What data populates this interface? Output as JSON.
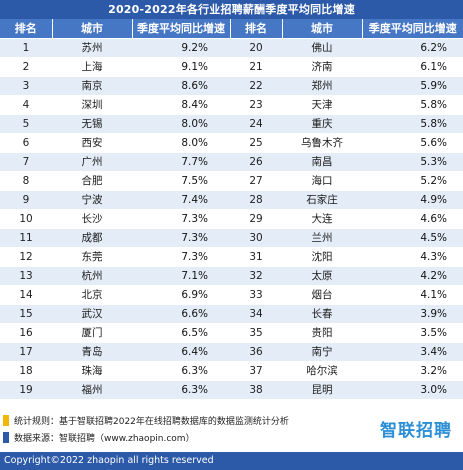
{
  "title": "2020-2022年各行业招聘薪酬季度平均同比增速",
  "chart_data": {
    "type": "table",
    "columns": [
      "排名",
      "城市",
      "季度平均同比增速",
      "排名",
      "城市",
      "季度平均同比增速"
    ],
    "rows": [
      {
        "rank": "1",
        "city": "苏州",
        "value": "9.2%"
      },
      {
        "rank": "2",
        "city": "上海",
        "value": "9.1%"
      },
      {
        "rank": "3",
        "city": "南京",
        "value": "8.6%"
      },
      {
        "rank": "4",
        "city": "深圳",
        "value": "8.4%"
      },
      {
        "rank": "5",
        "city": "无锡",
        "value": "8.0%"
      },
      {
        "rank": "6",
        "city": "西安",
        "value": "8.0%"
      },
      {
        "rank": "7",
        "city": "广州",
        "value": "7.7%"
      },
      {
        "rank": "8",
        "city": "合肥",
        "value": "7.5%"
      },
      {
        "rank": "9",
        "city": "宁波",
        "value": "7.4%"
      },
      {
        "rank": "10",
        "city": "长沙",
        "value": "7.3%"
      },
      {
        "rank": "11",
        "city": "成都",
        "value": "7.3%"
      },
      {
        "rank": "12",
        "city": "东莞",
        "value": "7.3%"
      },
      {
        "rank": "13",
        "city": "杭州",
        "value": "7.1%"
      },
      {
        "rank": "14",
        "city": "北京",
        "value": "6.9%"
      },
      {
        "rank": "15",
        "city": "武汉",
        "value": "6.6%"
      },
      {
        "rank": "16",
        "city": "厦门",
        "value": "6.5%"
      },
      {
        "rank": "17",
        "city": "青岛",
        "value": "6.4%"
      },
      {
        "rank": "18",
        "city": "珠海",
        "value": "6.3%"
      },
      {
        "rank": "19",
        "city": "福州",
        "value": "6.3%"
      },
      {
        "rank": "20",
        "city": "佛山",
        "value": "6.2%"
      },
      {
        "rank": "21",
        "city": "济南",
        "value": "6.1%"
      },
      {
        "rank": "22",
        "city": "郑州",
        "value": "5.9%"
      },
      {
        "rank": "23",
        "city": "天津",
        "value": "5.8%"
      },
      {
        "rank": "24",
        "city": "重庆",
        "value": "5.8%"
      },
      {
        "rank": "25",
        "city": "乌鲁木齐",
        "value": "5.6%"
      },
      {
        "rank": "26",
        "city": "南昌",
        "value": "5.3%"
      },
      {
        "rank": "27",
        "city": "海口",
        "value": "5.2%"
      },
      {
        "rank": "28",
        "city": "石家庄",
        "value": "4.9%"
      },
      {
        "rank": "29",
        "city": "大连",
        "value": "4.6%"
      },
      {
        "rank": "30",
        "city": "兰州",
        "value": "4.5%"
      },
      {
        "rank": "31",
        "city": "沈阳",
        "value": "4.3%"
      },
      {
        "rank": "32",
        "city": "太原",
        "value": "4.2%"
      },
      {
        "rank": "33",
        "city": "烟台",
        "value": "4.1%"
      },
      {
        "rank": "34",
        "city": "长春",
        "value": "3.9%"
      },
      {
        "rank": "35",
        "city": "贵阳",
        "value": "3.5%"
      },
      {
        "rank": "36",
        "city": "南宁",
        "value": "3.4%"
      },
      {
        "rank": "37",
        "city": "哈尔滨",
        "value": "3.2%"
      },
      {
        "rank": "38",
        "city": "昆明",
        "value": "3.0%"
      }
    ]
  },
  "notes": {
    "method": "统计规则：基于智联招聘2022年在线招聘数据库的数据监测统计分析",
    "source": "数据来源：智联招聘（www.zhaopin.com）",
    "method_marker_color": "#f2b705",
    "source_marker_color": "#2d5aa8"
  },
  "logo": "智联招聘",
  "copyright": "Copyright©2022 zhaopin all rights reserved",
  "colors": {
    "header_bar": "#2d5aa8",
    "column_header": "#4677c4",
    "row_stripe": "#e4edf7",
    "logo": "#2d8fd6"
  }
}
